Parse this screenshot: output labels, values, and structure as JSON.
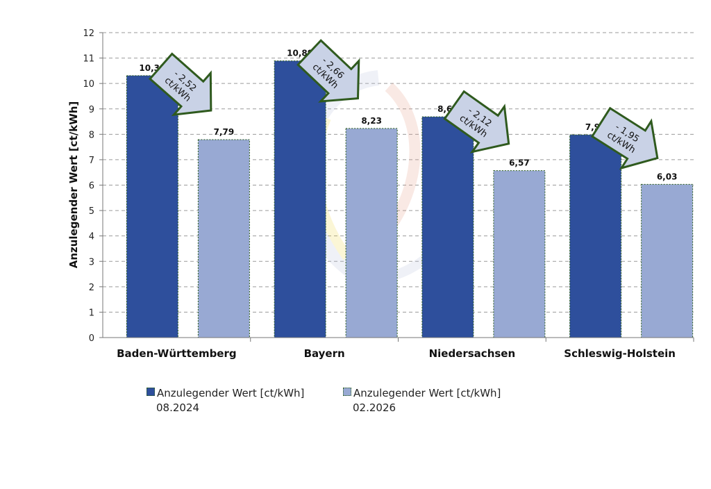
{
  "chart_data": {
    "type": "bar",
    "title": "",
    "xlabel": "",
    "ylabel": "Anzulegender Wert [ct/kWh]",
    "ylim": [
      0,
      12
    ],
    "yticks": [
      "0",
      "1",
      "2",
      "3",
      "4",
      "5",
      "6",
      "7",
      "8",
      "9",
      "10",
      "11",
      "12"
    ],
    "grid": "horizontal dashed",
    "legend_position": "bottom",
    "categories": [
      "Baden-Württemberg",
      "Bayern",
      "Niedersachsen",
      "Schleswig-Holstein"
    ],
    "series": [
      {
        "name": "Anzulegender Wert [ct/kWh] 08.2024",
        "name_line1": "Anzulegender Wert [ct/kWh]",
        "name_line2": "08.2024",
        "color": "#2e4f9c",
        "values": [
          10.31,
          10.89,
          8.69,
          7.98
        ],
        "labels": [
          "10,31",
          "10,89",
          "8,69",
          "7,98"
        ]
      },
      {
        "name": "Anzulegender Wert [ct/kWh] 02.2026",
        "name_line1": "Anzulegender Wert [ct/kWh]",
        "name_line2": "02.2026",
        "color": "#98a9d3",
        "values": [
          7.79,
          8.23,
          6.57,
          6.03
        ],
        "labels": [
          "7,79",
          "8,23",
          "6,57",
          "6,03"
        ]
      }
    ],
    "annotations": [
      {
        "category": "Baden-Württemberg",
        "line1": "- 2,52",
        "line2": "ct/kWh"
      },
      {
        "category": "Bayern",
        "line1": "- 2,66",
        "line2": "ct/kWh"
      },
      {
        "category": "Niedersachsen",
        "line1": "- 2,12",
        "line2": "ct/kWh"
      },
      {
        "category": "Schleswig-Holstein",
        "line1": "- 1,95",
        "line2": "ct/kWh"
      }
    ],
    "annotation_style": {
      "fill": "#c9d2e6",
      "stroke": "#2f5a1e"
    }
  }
}
